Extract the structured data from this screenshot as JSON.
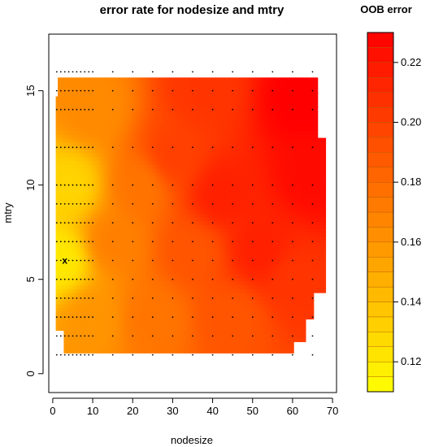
{
  "chart_data": {
    "type": "heatmap",
    "title": "error rate for nodesize and mtry",
    "xlabel": "nodesize",
    "ylabel": "mtry",
    "xlim": [
      -1,
      71
    ],
    "ylim": [
      -1,
      18
    ],
    "x_ticks": [
      "0",
      "10",
      "20",
      "30",
      "40",
      "50",
      "60",
      "70"
    ],
    "y_ticks": [
      "0",
      "5",
      "10",
      "15"
    ],
    "legend_title": "OOB error",
    "legend_ticks": [
      "0.12",
      "0.14",
      "0.16",
      "0.18",
      "0.20",
      "0.22"
    ],
    "zlim": [
      0.11,
      0.23
    ],
    "color_low": "#ffff00",
    "color_high": "#ff0000",
    "marker": {
      "x": 3,
      "y": 6,
      "label": "x"
    },
    "sample_x": [
      1,
      2,
      3,
      4,
      5,
      6,
      7,
      8,
      9,
      10,
      15,
      20,
      25,
      30,
      35,
      40,
      45,
      50,
      55,
      60,
      65
    ],
    "sample_y": [
      1,
      2,
      3,
      4,
      5,
      6,
      7,
      8,
      9,
      10,
      12,
      14,
      15,
      16
    ],
    "hotspots": [
      {
        "x": 62,
        "y": 14.5,
        "value": 0.23
      },
      {
        "x": 65,
        "y": 10.5,
        "value": 0.225
      },
      {
        "x": 42,
        "y": 9.5,
        "value": 0.215
      },
      {
        "x": 30,
        "y": 11.5,
        "value": 0.2
      },
      {
        "x": 52,
        "y": 6.5,
        "value": 0.215
      },
      {
        "x": 60,
        "y": 5,
        "value": 0.205
      },
      {
        "x": 38,
        "y": 15,
        "value": 0.205
      },
      {
        "x": 45,
        "y": 3,
        "value": 0.19
      },
      {
        "x": 22,
        "y": 10,
        "value": 0.175
      },
      {
        "x": 25,
        "y": 3,
        "value": 0.175
      },
      {
        "x": 35,
        "y": 6.5,
        "value": 0.19
      },
      {
        "x": 4,
        "y": 10,
        "value": 0.13
      },
      {
        "x": 2,
        "y": 6,
        "value": 0.12
      },
      {
        "x": 10,
        "y": 14,
        "value": 0.165
      },
      {
        "x": 10,
        "y": 3,
        "value": 0.16
      },
      {
        "x": 15,
        "y": 7,
        "value": 0.17
      }
    ]
  }
}
